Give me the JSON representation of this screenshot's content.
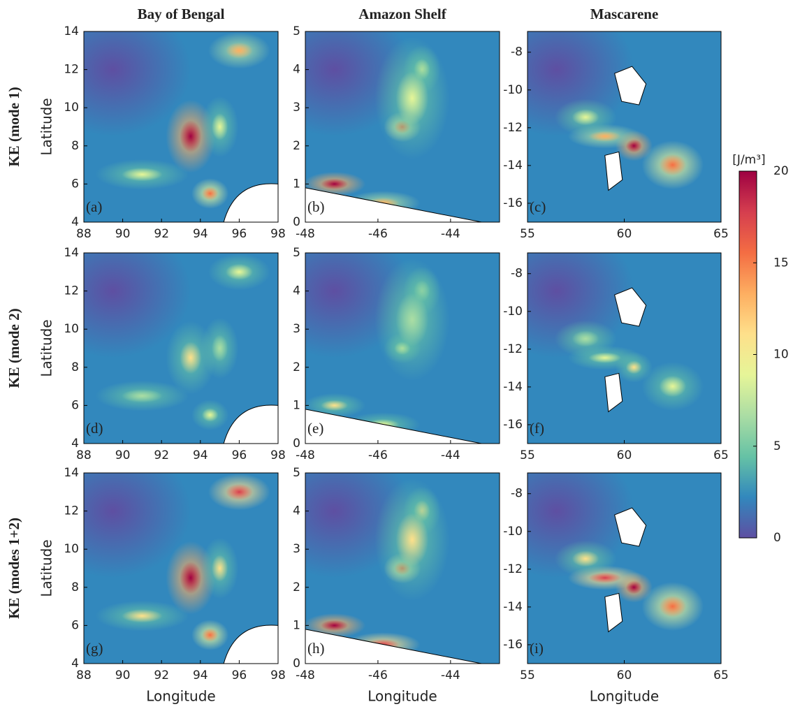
{
  "chart_data": [
    {
      "type": "map",
      "title": "Bay of Bengal",
      "row_label": "KE (mode 1)",
      "ylabel": "Latitude",
      "panel_label": "(a)",
      "xlim": [
        88,
        98
      ],
      "ylim": [
        4,
        14
      ],
      "xticks": [
        88,
        90,
        92,
        94,
        96,
        98
      ],
      "yticks": [
        4,
        6,
        8,
        10,
        12,
        14
      ]
    },
    {
      "type": "map",
      "title": "Amazon Shelf",
      "panel_label": "(b)",
      "xlim": [
        -48,
        -42.65
      ],
      "ylim": [
        0,
        5
      ],
      "xticks": [
        -48,
        -46,
        -44
      ],
      "yticks": [
        0,
        1,
        2,
        3,
        4,
        5
      ]
    },
    {
      "type": "map",
      "title": "Mascarene",
      "panel_label": "(c)",
      "xlim": [
        55,
        65
      ],
      "ylim": [
        -17,
        -6.9
      ],
      "xticks": [
        55,
        60,
        65
      ],
      "yticks": [
        -8,
        -10,
        -12,
        -14,
        -16
      ]
    },
    {
      "type": "map",
      "row_label": "KE (mode 2)",
      "ylabel": "Latitude",
      "panel_label": "(d)",
      "xlim": [
        88,
        98
      ],
      "ylim": [
        4,
        14
      ],
      "xticks": [
        88,
        90,
        92,
        94,
        96,
        98
      ],
      "yticks": [
        4,
        6,
        8,
        10,
        12,
        14
      ]
    },
    {
      "type": "map",
      "panel_label": "(e)",
      "xlim": [
        -48,
        -42.65
      ],
      "ylim": [
        0,
        5
      ],
      "xticks": [
        -48,
        -46,
        -44
      ],
      "yticks": [
        0,
        1,
        2,
        3,
        4,
        5
      ]
    },
    {
      "type": "map",
      "panel_label": "(f)",
      "xlim": [
        55,
        65
      ],
      "ylim": [
        -17,
        -6.9
      ],
      "xticks": [
        55,
        60,
        65
      ],
      "yticks": [
        -8,
        -10,
        -12,
        -14,
        -16
      ]
    },
    {
      "type": "map",
      "row_label": "KE (modes 1+2)",
      "ylabel": "Latitude",
      "xlabel": "Longitude",
      "panel_label": "(g)",
      "xlim": [
        88,
        98
      ],
      "ylim": [
        4,
        14
      ],
      "xticks": [
        88,
        90,
        92,
        94,
        96,
        98
      ],
      "yticks": [
        4,
        6,
        8,
        10,
        12,
        14
      ]
    },
    {
      "type": "map",
      "xlabel": "Longitude",
      "panel_label": "(h)",
      "xlim": [
        -48,
        -42.65
      ],
      "ylim": [
        0,
        5
      ],
      "xticks": [
        -48,
        -46,
        -44
      ],
      "yticks": [
        0,
        1,
        2,
        3,
        4,
        5
      ]
    },
    {
      "type": "map",
      "xlabel": "Longitude",
      "panel_label": "(i)",
      "xlim": [
        55,
        65
      ],
      "ylim": [
        -17,
        -6.9
      ],
      "xticks": [
        55,
        60,
        65
      ],
      "yticks": [
        -8,
        -10,
        -12,
        -14,
        -16
      ]
    },
    {
      "type": "colorbar",
      "label": "[J/m³]",
      "ylim": [
        0,
        20
      ],
      "yticks": [
        0,
        5,
        10,
        15,
        20
      ],
      "colors": [
        "#5e4fa2",
        "#3288bd",
        "#66c2a5",
        "#abdda4",
        "#e6f598",
        "#fee08b",
        "#fdae61",
        "#f46d43",
        "#d53e4f",
        "#9e0142"
      ]
    }
  ]
}
